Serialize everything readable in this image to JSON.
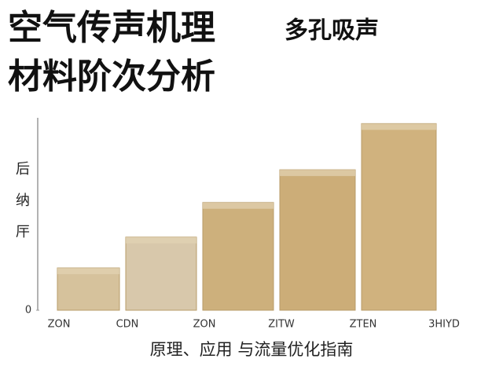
{
  "chart_data": {
    "type": "bar",
    "title_lines": [
      "空气传声机理",
      "多孔吸声",
      "材料阶次分析"
    ],
    "ylabel": "后纳厈",
    "xlabel": "原理、应用 与流量优化指南",
    "categories": [
      "ZON",
      "CDN",
      "ZON",
      "ZITW",
      "ZTEN",
      "3HIYD"
    ],
    "values": [
      22,
      38,
      56,
      73,
      97,
      null
    ],
    "colors": [
      "#d6c29c",
      "#d8c8ab",
      "#cdb07c",
      "#ccad78",
      "#d0b27e"
    ],
    "ylim": [
      0,
      100
    ],
    "yticks": [
      0
    ]
  }
}
